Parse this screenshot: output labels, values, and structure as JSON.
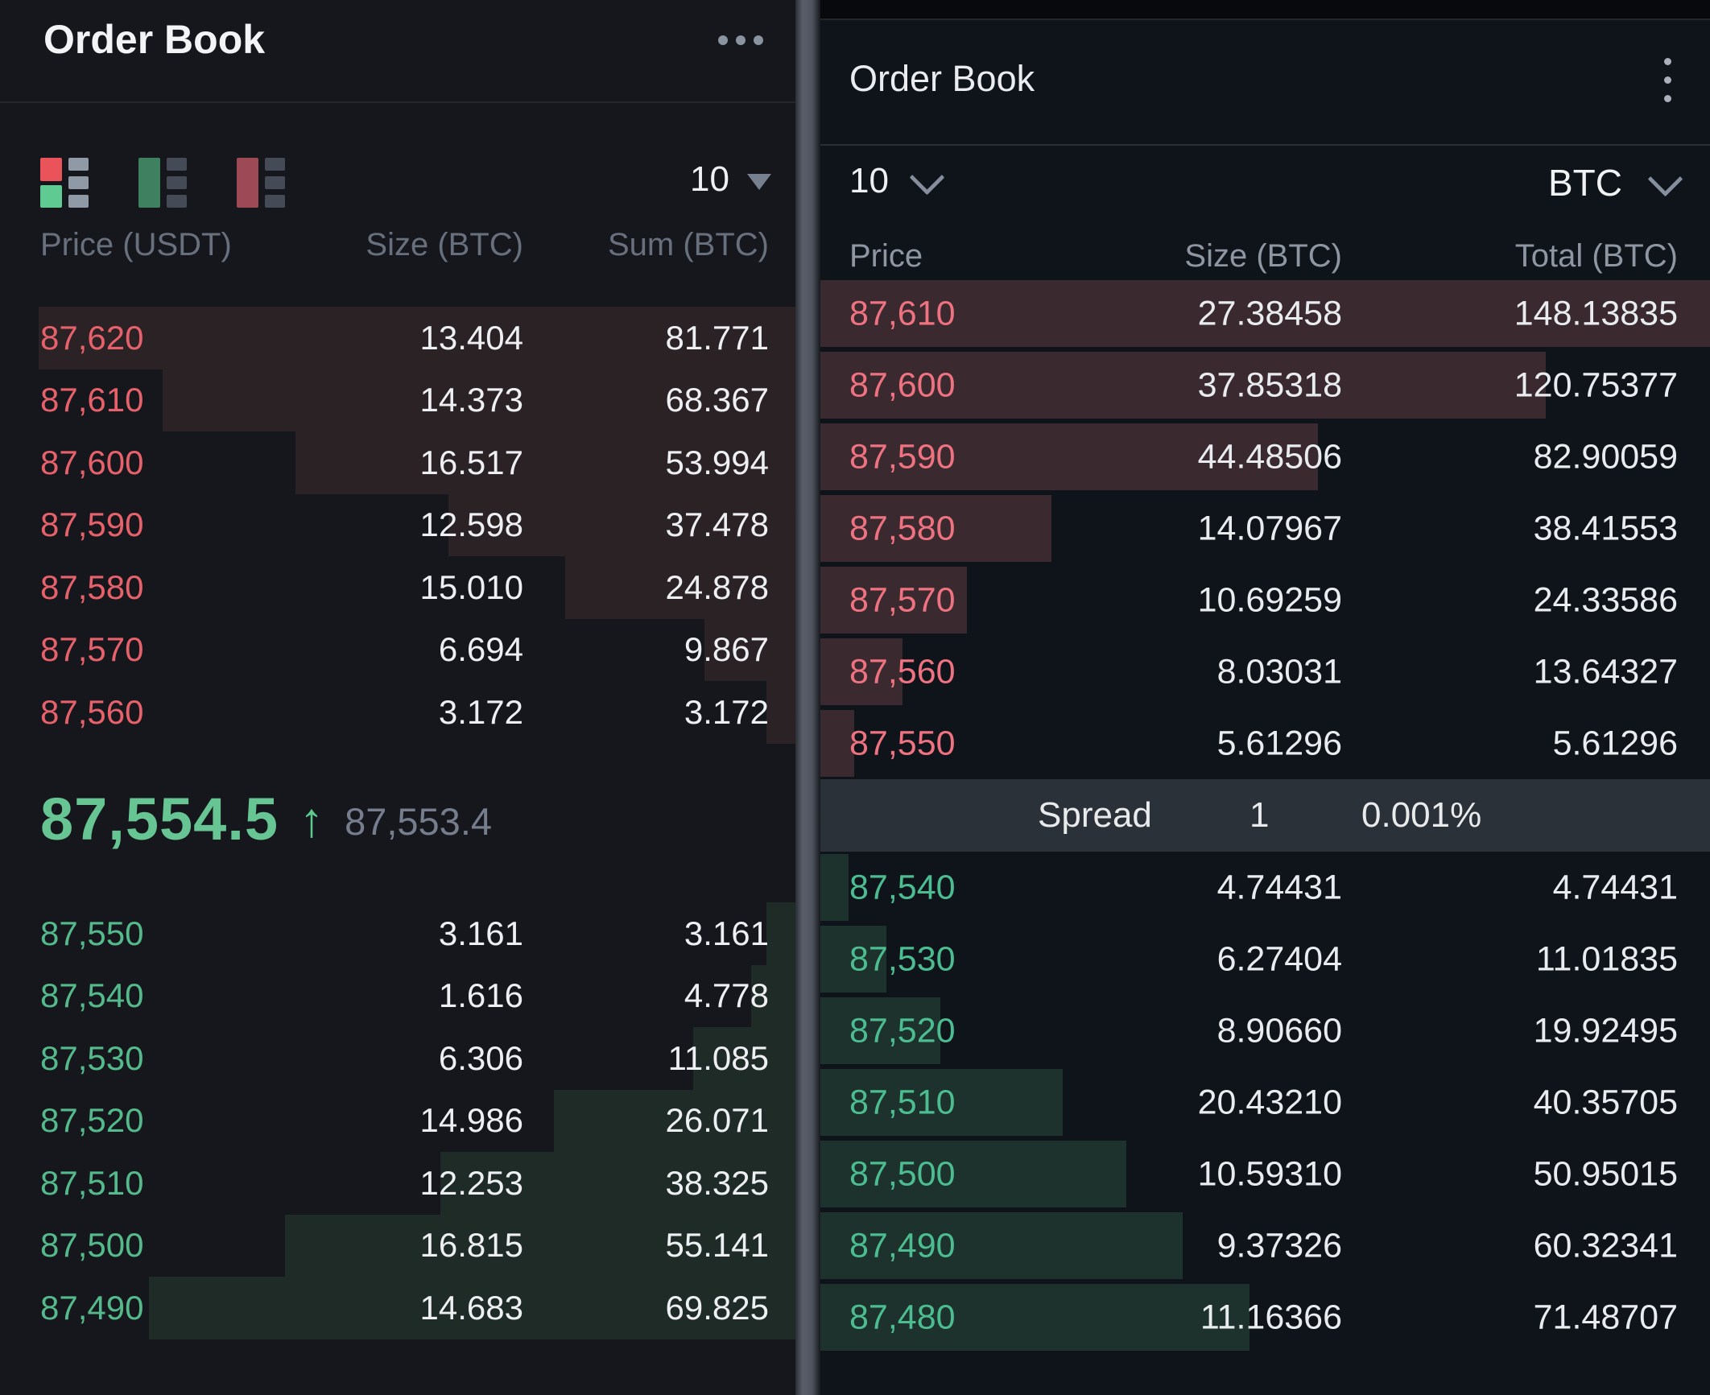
{
  "colors": {
    "left_bg": "#15171c",
    "right_bg": "#0f141b",
    "left_ask_text": "#e7616b",
    "left_bid_text": "#55ba8b",
    "left_ask_bar": "#2b2226",
    "left_bid_bar": "#1e2b27",
    "right_ask_text": "#ef7280",
    "right_bid_text": "#4cbd90",
    "right_ask_bar": "#3a2a30",
    "right_bid_bar": "#1d322c",
    "last_price_green": "#67c493",
    "spread_band_bg": "#2b3139"
  },
  "left_panel": {
    "title": "Order Book",
    "menu_icon": "ellipsis-horizontal-icon",
    "view_modes": [
      "order-book-both-view",
      "order-book-bids-view",
      "order-book-asks-view"
    ],
    "depth_select": {
      "value": "10"
    },
    "columns": {
      "price": "Price (USDT)",
      "size": "Size (BTC)",
      "sum": "Sum (BTC)"
    },
    "asks": [
      {
        "price": "87,620",
        "size": "13.404",
        "sum": "81.771"
      },
      {
        "price": "87,610",
        "size": "14.373",
        "sum": "68.367"
      },
      {
        "price": "87,600",
        "size": "16.517",
        "sum": "53.994"
      },
      {
        "price": "87,590",
        "size": "12.598",
        "sum": "37.478"
      },
      {
        "price": "87,580",
        "size": "15.010",
        "sum": "24.878"
      },
      {
        "price": "87,570",
        "size": "6.694",
        "sum": "9.867"
      },
      {
        "price": "87,560",
        "size": "3.172",
        "sum": "3.172"
      }
    ],
    "last_price": {
      "value": "87,554.5",
      "direction": "up",
      "arrow": "↑",
      "mark_price": "87,553.4"
    },
    "bids": [
      {
        "price": "87,550",
        "size": "3.161",
        "sum": "3.161"
      },
      {
        "price": "87,540",
        "size": "1.616",
        "sum": "4.778"
      },
      {
        "price": "87,530",
        "size": "6.306",
        "sum": "11.085"
      },
      {
        "price": "87,520",
        "size": "14.986",
        "sum": "26.071"
      },
      {
        "price": "87,510",
        "size": "12.253",
        "sum": "38.325"
      },
      {
        "price": "87,500",
        "size": "16.815",
        "sum": "55.141"
      },
      {
        "price": "87,490",
        "size": "14.683",
        "sum": "69.825"
      }
    ]
  },
  "right_panel": {
    "title": "Order Book",
    "menu_icon": "kebab-vertical-icon",
    "depth_select": {
      "value": "10"
    },
    "asset_select": {
      "value": "BTC"
    },
    "columns": {
      "price": "Price",
      "size": "Size (BTC)",
      "total": "Total (BTC)"
    },
    "asks": [
      {
        "price": "87,610",
        "size": "27.38458",
        "sum": "148.13835"
      },
      {
        "price": "87,600",
        "size": "37.85318",
        "sum": "120.75377"
      },
      {
        "price": "87,590",
        "size": "44.48506",
        "sum": "82.90059"
      },
      {
        "price": "87,580",
        "size": "14.07967",
        "sum": "38.41553"
      },
      {
        "price": "87,570",
        "size": "10.69259",
        "sum": "24.33586"
      },
      {
        "price": "87,560",
        "size": "8.03031",
        "sum": "13.64327"
      },
      {
        "price": "87,550",
        "size": "5.61296",
        "sum": "5.61296"
      }
    ],
    "spread": {
      "label": "Spread",
      "value": "1",
      "percent": "0.001%"
    },
    "bids": [
      {
        "price": "87,540",
        "size": "4.74431",
        "sum": "4.74431"
      },
      {
        "price": "87,530",
        "size": "6.27404",
        "sum": "11.01835"
      },
      {
        "price": "87,520",
        "size": "8.90660",
        "sum": "19.92495"
      },
      {
        "price": "87,510",
        "size": "20.43210",
        "sum": "40.35705"
      },
      {
        "price": "87,500",
        "size": "10.59310",
        "sum": "50.95015"
      },
      {
        "price": "87,490",
        "size": "9.37326",
        "sum": "60.32341"
      },
      {
        "price": "87,480",
        "size": "11.16366",
        "sum": "71.48707"
      }
    ]
  }
}
